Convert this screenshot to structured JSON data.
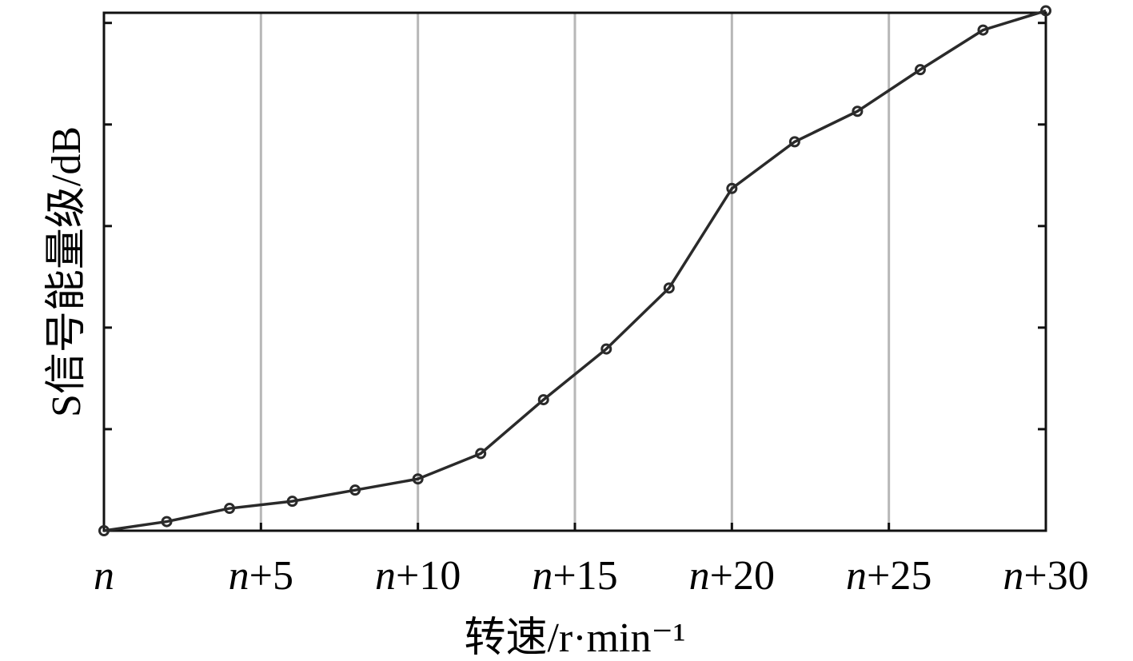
{
  "chart_data": {
    "type": "line",
    "title": "",
    "xlabel": "转速/r·min⁻¹",
    "ylabel": "S信号能量级/dB",
    "x_tick_values": [
      0,
      5,
      10,
      15,
      20,
      25,
      30
    ],
    "x_tick_labels": [
      {
        "var": "n",
        "suffix": ""
      },
      {
        "var": "n",
        "suffix": "+5"
      },
      {
        "var": "n",
        "suffix": "+10"
      },
      {
        "var": "n",
        "suffix": "+15"
      },
      {
        "var": "n",
        "suffix": "+20"
      },
      {
        "var": "n",
        "suffix": "+25"
      },
      {
        "var": "n",
        "suffix": "+30"
      }
    ],
    "xlim": [
      0,
      30
    ],
    "ylim": [
      0,
      5.1
    ],
    "y_ticks": [
      0,
      1,
      2,
      3,
      4,
      5
    ],
    "y_tick_labels_shown": false,
    "grid": {
      "vertical": true,
      "horizontal": false
    },
    "series": [
      {
        "marker": "circle",
        "color": "#2a2a2a",
        "x": [
          0,
          2,
          4,
          6,
          8,
          10,
          12,
          14,
          16,
          18,
          20,
          22,
          24,
          26,
          28,
          30
        ],
        "y": [
          0.0,
          0.09,
          0.22,
          0.29,
          0.4,
          0.51,
          0.76,
          1.29,
          1.79,
          2.39,
          3.37,
          3.83,
          4.13,
          4.54,
          4.93,
          5.12
        ]
      }
    ]
  }
}
